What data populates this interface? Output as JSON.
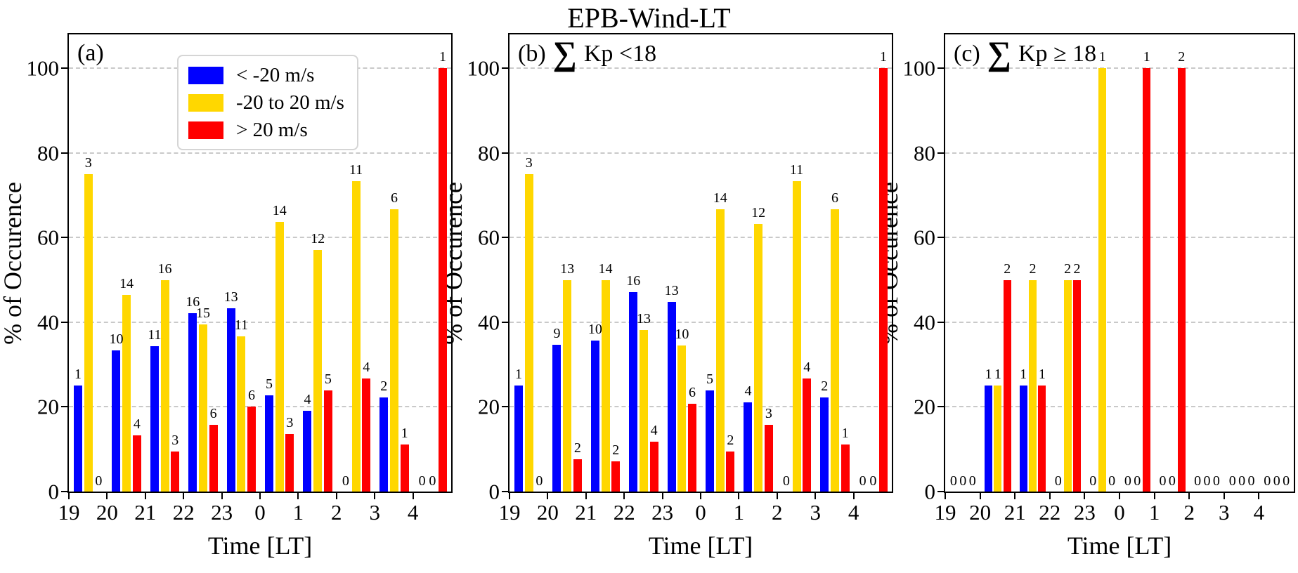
{
  "title": "EPB-Wind-LT",
  "chart_data": {
    "type": "bar",
    "title": "EPB-Wind-LT",
    "xlabel": "Time [LT]",
    "ylabel": "% of Occurence",
    "ylim": [
      0,
      108
    ],
    "yticks": [
      0,
      20,
      40,
      60,
      80,
      100
    ],
    "grid": "horizontal dashed gray lines at yticks",
    "legend_position": "upper left of panel (a)",
    "categories": [
      "19",
      "20",
      "21",
      "22",
      "23",
      "0",
      "1",
      "2",
      "3",
      "4"
    ],
    "legend": {
      "entries": [
        {
          "label": "< -20 m/s",
          "color": "#0000ff"
        },
        {
          "label": "-20 to 20 m/s",
          "color": "#ffd700"
        },
        {
          "label": "> 20 m/s",
          "color": "#ff0000"
        }
      ]
    },
    "panels": [
      {
        "tag": "(a)",
        "header_sigma": "",
        "header_text": "",
        "has_legend": true,
        "series": [
          {
            "name": "< -20 m/s",
            "color": "#0000ff",
            "pct": [
              25,
              33.3,
              34.4,
              42.1,
              43.3,
              22.7,
              19.0,
              0,
              22.2,
              0
            ],
            "counts": [
              1,
              10,
              11,
              16,
              13,
              5,
              4,
              0,
              2,
              0
            ]
          },
          {
            "name": "-20 to 20 m/s",
            "color": "#ffd700",
            "pct": [
              75,
              46.5,
              50,
              39.5,
              36.7,
              63.6,
              57.1,
              73.3,
              66.7,
              0
            ],
            "counts": [
              3,
              14,
              16,
              15,
              11,
              14,
              12,
              11,
              6,
              0
            ]
          },
          {
            "name": "> 20 m/s",
            "color": "#ff0000",
            "pct": [
              0,
              13.3,
              9.4,
              15.8,
              20,
              13.6,
              23.8,
              26.7,
              11.1,
              100
            ],
            "counts": [
              0,
              4,
              3,
              6,
              6,
              3,
              5,
              4,
              1,
              1
            ]
          }
        ]
      },
      {
        "tag": "(b)",
        "header_sigma": "∑",
        "header_text": "Kp <18",
        "has_legend": false,
        "series": [
          {
            "name": "< -20 m/s",
            "color": "#0000ff",
            "pct": [
              25,
              34.6,
              35.7,
              47.1,
              44.8,
              23.8,
              21.1,
              0,
              22.2,
              0
            ],
            "counts": [
              1,
              9,
              10,
              16,
              13,
              5,
              4,
              0,
              2,
              0
            ]
          },
          {
            "name": "-20 to 20 m/s",
            "color": "#ffd700",
            "pct": [
              75,
              50,
              50,
              38.2,
              34.5,
              66.7,
              63.2,
              73.3,
              66.7,
              0
            ],
            "counts": [
              3,
              13,
              14,
              13,
              10,
              14,
              12,
              11,
              6,
              0
            ]
          },
          {
            "name": "> 20 m/s",
            "color": "#ff0000",
            "pct": [
              0,
              7.7,
              7.1,
              11.8,
              20.7,
              9.5,
              15.8,
              26.7,
              11.1,
              100
            ],
            "counts": [
              0,
              2,
              2,
              4,
              6,
              2,
              3,
              4,
              1,
              1
            ]
          }
        ]
      },
      {
        "tag": "(c)",
        "header_sigma": "∑",
        "header_text": "Kp ≥ 18",
        "has_legend": false,
        "series": [
          {
            "name": "< -20 m/s",
            "color": "#0000ff",
            "pct": [
              0,
              25,
              25,
              0,
              0,
              0,
              0,
              0,
              0,
              0
            ],
            "counts": [
              0,
              1,
              1,
              0,
              0,
              0,
              0,
              0,
              0,
              0
            ]
          },
          {
            "name": "-20 to 20 m/s",
            "color": "#ffd700",
            "pct": [
              0,
              25,
              50,
              50,
              100,
              0,
              0,
              0,
              0,
              0
            ],
            "counts": [
              0,
              1,
              2,
              2,
              1,
              0,
              0,
              0,
              0,
              0
            ]
          },
          {
            "name": "> 20 m/s",
            "color": "#ff0000",
            "pct": [
              0,
              50,
              25,
              50,
              0,
              100,
              100,
              0,
              0,
              0
            ],
            "counts": [
              0,
              2,
              1,
              2,
              0,
              1,
              2,
              0,
              0,
              0
            ]
          }
        ]
      }
    ]
  }
}
